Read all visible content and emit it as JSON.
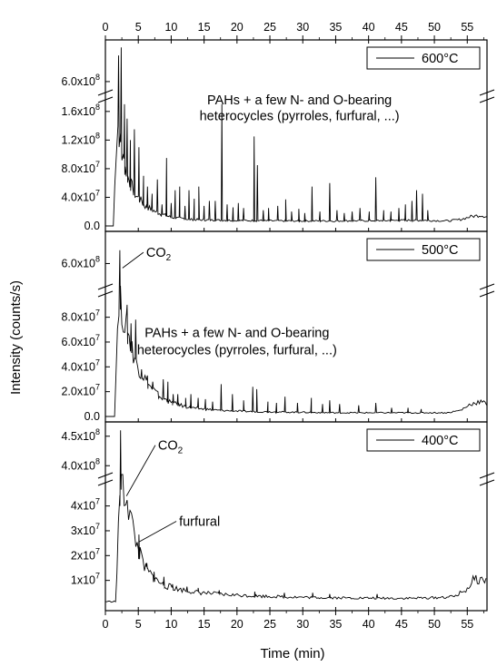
{
  "chart_data": {
    "type": "line",
    "xlabel": "Time (min)",
    "ylabel": "Intensity (counts/s)",
    "xlim": [
      0,
      58
    ],
    "x_ticks": [
      0,
      5,
      10,
      15,
      20,
      25,
      30,
      35,
      40,
      45,
      50,
      55
    ],
    "x_ticks_top": [
      0,
      5,
      10,
      15,
      20,
      25,
      30,
      35,
      40,
      45,
      50,
      55
    ],
    "y_axis_break": true,
    "panels": [
      {
        "legend": "600°C",
        "legend_position": "top-right",
        "upper_ylim": [
          550000000.0,
          780000000.0
        ],
        "upper_ticks": [
          {
            "value": 600000000.0,
            "label": "6.0x10"
          }
        ],
        "lower_ylim": [
          0,
          175000000.0
        ],
        "lower_ticks": [
          {
            "value": 0,
            "label": "0.0"
          },
          {
            "value": 40000000.0,
            "label": "4.0x10"
          },
          {
            "value": 80000000.0,
            "label": "8.0x10"
          },
          {
            "value": 120000000.0,
            "label": "1.2x10"
          },
          {
            "value": 160000000.0,
            "label": "1.6x10"
          }
        ],
        "annotations": [
          {
            "text": "PAHs + a few N- and O-bearing",
            "x": 29.5,
            "y": 170000000.0
          },
          {
            "text": "heterocycles (pyrroles, furfural, ...)",
            "x": 29.5,
            "y": 148000000.0
          }
        ],
        "baseline": {
          "x": [
            1.2,
            1.8,
            2.5,
            3.5,
            4.5,
            6,
            8,
            10,
            13,
            17,
            22,
            28,
            35,
            42,
            48,
            52,
            54,
            55.5,
            57,
            58
          ],
          "y": [
            0,
            150000000.0,
            100000000.0,
            65000000.0,
            45000000.0,
            28000000.0,
            18000000.0,
            12000000.0,
            9000000.0,
            8000000.0,
            7500000.0,
            7000000.0,
            7000000.0,
            7500000.0,
            8000000.0,
            7000000.0,
            9000000.0,
            13000000.0,
            15000000.0,
            13000000.0
          ]
        },
        "peaks": [
          {
            "x": 2.0,
            "y": 730000000.0
          },
          {
            "x": 2.4,
            "y": 770000000.0
          },
          {
            "x": 2.9,
            "y": 170000000.0
          },
          {
            "x": 3.3,
            "y": 150000000.0
          },
          {
            "x": 3.8,
            "y": 120000000.0
          },
          {
            "x": 4.4,
            "y": 135000000.0
          },
          {
            "x": 5.1,
            "y": 110000000.0
          },
          {
            "x": 5.8,
            "y": 70000000.0
          },
          {
            "x": 6.4,
            "y": 55000000.0
          },
          {
            "x": 7.1,
            "y": 45000000.0
          },
          {
            "x": 7.9,
            "y": 65000000.0
          },
          {
            "x": 8.6,
            "y": 30000000.0
          },
          {
            "x": 9.3,
            "y": 95000000.0
          },
          {
            "x": 10.0,
            "y": 32000000.0
          },
          {
            "x": 10.6,
            "y": 50000000.0
          },
          {
            "x": 11.3,
            "y": 55000000.0
          },
          {
            "x": 12.1,
            "y": 28000000.0
          },
          {
            "x": 12.7,
            "y": 50000000.0
          },
          {
            "x": 13.5,
            "y": 38000000.0
          },
          {
            "x": 14.2,
            "y": 55000000.0
          },
          {
            "x": 15.0,
            "y": 28000000.0
          },
          {
            "x": 15.8,
            "y": 35000000.0
          },
          {
            "x": 16.7,
            "y": 35000000.0
          },
          {
            "x": 17.7,
            "y": 170000000.0
          },
          {
            "x": 18.5,
            "y": 30000000.0
          },
          {
            "x": 19.4,
            "y": 26000000.0
          },
          {
            "x": 20.2,
            "y": 32000000.0
          },
          {
            "x": 21.0,
            "y": 25000000.0
          },
          {
            "x": 22.6,
            "y": 125000000.0
          },
          {
            "x": 23.1,
            "y": 85000000.0
          },
          {
            "x": 24.0,
            "y": 22000000.0
          },
          {
            "x": 24.8,
            "y": 25000000.0
          },
          {
            "x": 26.2,
            "y": 28000000.0
          },
          {
            "x": 27.4,
            "y": 37000000.0
          },
          {
            "x": 28.3,
            "y": 20000000.0
          },
          {
            "x": 29.4,
            "y": 24000000.0
          },
          {
            "x": 30.3,
            "y": 18000000.0
          },
          {
            "x": 31.4,
            "y": 55000000.0
          },
          {
            "x": 32.6,
            "y": 20000000.0
          },
          {
            "x": 34.1,
            "y": 60000000.0
          },
          {
            "x": 35.2,
            "y": 22000000.0
          },
          {
            "x": 36.3,
            "y": 18000000.0
          },
          {
            "x": 37.5,
            "y": 20000000.0
          },
          {
            "x": 38.7,
            "y": 25000000.0
          },
          {
            "x": 40.1,
            "y": 20000000.0
          },
          {
            "x": 41.1,
            "y": 68000000.0
          },
          {
            "x": 42.3,
            "y": 22000000.0
          },
          {
            "x": 43.4,
            "y": 20000000.0
          },
          {
            "x": 44.6,
            "y": 25000000.0
          },
          {
            "x": 45.6,
            "y": 30000000.0
          },
          {
            "x": 46.6,
            "y": 35000000.0
          },
          {
            "x": 47.3,
            "y": 50000000.0
          },
          {
            "x": 48.2,
            "y": 45000000.0
          },
          {
            "x": 49.0,
            "y": 22000000.0
          }
        ]
      },
      {
        "legend": "500°C",
        "legend_position": "top-right",
        "upper_ylim": [
          550000000.0,
          660000000.0
        ],
        "upper_ticks": [
          {
            "value": 600000000.0,
            "label": "6.0x10"
          }
        ],
        "lower_ylim": [
          0,
          98000000.0
        ],
        "lower_ticks": [
          {
            "value": 0,
            "label": "0.0"
          },
          {
            "value": 20000000.0,
            "label": "2.0x10"
          },
          {
            "value": 40000000.0,
            "label": "4.0x10"
          },
          {
            "value": 60000000.0,
            "label": "6.0x10"
          },
          {
            "value": 80000000.0,
            "label": "8.0x10"
          }
        ],
        "annotations": [
          {
            "text": "CO",
            "subscript": "2",
            "x": 6.2,
            "y": 615000000.0,
            "target": {
              "x": 2.6,
              "y": 590000000.0
            }
          },
          {
            "text": "PAHs + a few N- and O-bearing",
            "x": 20.0,
            "y": 64000000.0
          },
          {
            "text": "heterocycles (pyrroles, furfural, ...)",
            "x": 20.0,
            "y": 50000000.0
          }
        ],
        "baseline": {
          "x": [
            1.4,
            2.0,
            3.0,
            4.0,
            5.0,
            6.5,
            8,
            10,
            13,
            17,
            22,
            28,
            35,
            42,
            48,
            52,
            54,
            55.5,
            57,
            58
          ],
          "y": [
            0,
            98000000.0,
            75000000.0,
            55000000.0,
            40000000.0,
            26000000.0,
            17000000.0,
            11000000.0,
            7000000.0,
            5000000.0,
            4000000.0,
            3500000.0,
            3000000.0,
            3000000.0,
            3000000.0,
            3000000.0,
            5000000.0,
            10000000.0,
            12000000.0,
            10000000.0
          ]
        },
        "peaks": [
          {
            "x": 2.2,
            "y": 630000000.0
          },
          {
            "x": 3.3,
            "y": 90000000.0
          },
          {
            "x": 3.9,
            "y": 75000000.0
          },
          {
            "x": 4.6,
            "y": 78000000.0
          },
          {
            "x": 5.5,
            "y": 38000000.0
          },
          {
            "x": 6.4,
            "y": 33000000.0
          },
          {
            "x": 7.2,
            "y": 28000000.0
          },
          {
            "x": 8.0,
            "y": 20000000.0
          },
          {
            "x": 8.8,
            "y": 30000000.0
          },
          {
            "x": 9.5,
            "y": 28000000.0
          },
          {
            "x": 10.3,
            "y": 18000000.0
          },
          {
            "x": 11.0,
            "y": 18000000.0
          },
          {
            "x": 12.2,
            "y": 15000000.0
          },
          {
            "x": 13.0,
            "y": 18000000.0
          },
          {
            "x": 14.1,
            "y": 15000000.0
          },
          {
            "x": 15.2,
            "y": 14000000.0
          },
          {
            "x": 16.3,
            "y": 12000000.0
          },
          {
            "x": 17.6,
            "y": 26000000.0
          },
          {
            "x": 19.3,
            "y": 18000000.0
          },
          {
            "x": 21.0,
            "y": 13000000.0
          },
          {
            "x": 22.4,
            "y": 24000000.0
          },
          {
            "x": 23.0,
            "y": 22000000.0
          },
          {
            "x": 24.7,
            "y": 12000000.0
          },
          {
            "x": 26.0,
            "y": 11000000.0
          },
          {
            "x": 27.3,
            "y": 16000000.0
          },
          {
            "x": 29.2,
            "y": 11000000.0
          },
          {
            "x": 31.3,
            "y": 15000000.0
          },
          {
            "x": 33.0,
            "y": 10000000.0
          },
          {
            "x": 34.1,
            "y": 13000000.0
          },
          {
            "x": 35.6,
            "y": 10000000.0
          },
          {
            "x": 38.5,
            "y": 9000000.0
          },
          {
            "x": 41.1,
            "y": 11000000.0
          },
          {
            "x": 43.5,
            "y": 7000000.0
          },
          {
            "x": 46.0,
            "y": 7000000.0
          },
          {
            "x": 48.0,
            "y": 6000000.0
          }
        ]
      },
      {
        "legend": "400°C",
        "legend_position": "top-right",
        "upper_ylim": [
          385000000.0,
          465000000.0
        ],
        "upper_ticks": [
          {
            "value": 400000000.0,
            "label": "4.0x10"
          },
          {
            "value": 450000000.0,
            "label": "4.5x10"
          }
        ],
        "lower_ylim": [
          0,
          49000000.0
        ],
        "lower_ticks": [
          {
            "value": 10000000.0,
            "label": "1x10"
          },
          {
            "value": 20000000.0,
            "label": "2x10"
          },
          {
            "value": 30000000.0,
            "label": "3x10"
          },
          {
            "value": 40000000.0,
            "label": "4x10"
          }
        ],
        "annotations": [
          {
            "text": "CO",
            "subscript": "2",
            "x": 8.0,
            "y": 427000000.0,
            "target": {
              "x": 3.2,
              "y": 44000000.0
            }
          },
          {
            "text": "furfural",
            "x": 11.2,
            "y": 32000000.0,
            "target": {
              "x": 5.1,
              "y": 25500000.0
            }
          }
        ],
        "baseline": {
          "x": [
            0,
            1.6,
            2.2,
            2.7,
            3.2,
            4.0,
            5.0,
            6.0,
            7.5,
            9,
            11,
            14,
            18,
            23,
            30,
            38,
            46,
            50,
            53,
            55,
            56,
            57,
            58
          ],
          "y": [
            1500000.0,
            1500000.0,
            45000000.0,
            46000000.0,
            45000000.0,
            33000000.0,
            22000000.0,
            15000000.0,
            10500000.0,
            8000000.0,
            6500000.0,
            5200000.0,
            4300000.0,
            3700000.0,
            3200000.0,
            2900000.0,
            2800000.0,
            3000000.0,
            3500000.0,
            6500000.0,
            10500000.0,
            10200000.0,
            10000000.0
          ]
        },
        "peaks": [
          {
            "x": 2.3,
            "y": 460000000.0
          },
          {
            "x": 5.1,
            "y": 28500000.0
          },
          {
            "x": 6.3,
            "y": 17000000.0
          },
          {
            "x": 7.4,
            "y": 13500000.0
          },
          {
            "x": 8.9,
            "y": 11500000.0
          },
          {
            "x": 10.2,
            "y": 8500000.0
          },
          {
            "x": 12.4,
            "y": 7500000.0
          },
          {
            "x": 14.1,
            "y": 7000000.0
          },
          {
            "x": 17.3,
            "y": 6000000.0
          },
          {
            "x": 22.7,
            "y": 5500000.0
          },
          {
            "x": 27.2,
            "y": 5000000.0
          },
          {
            "x": 31.5,
            "y": 5000000.0
          },
          {
            "x": 34.1,
            "y": 4500000.0
          },
          {
            "x": 41.3,
            "y": 4500000.0
          }
        ]
      }
    ]
  }
}
